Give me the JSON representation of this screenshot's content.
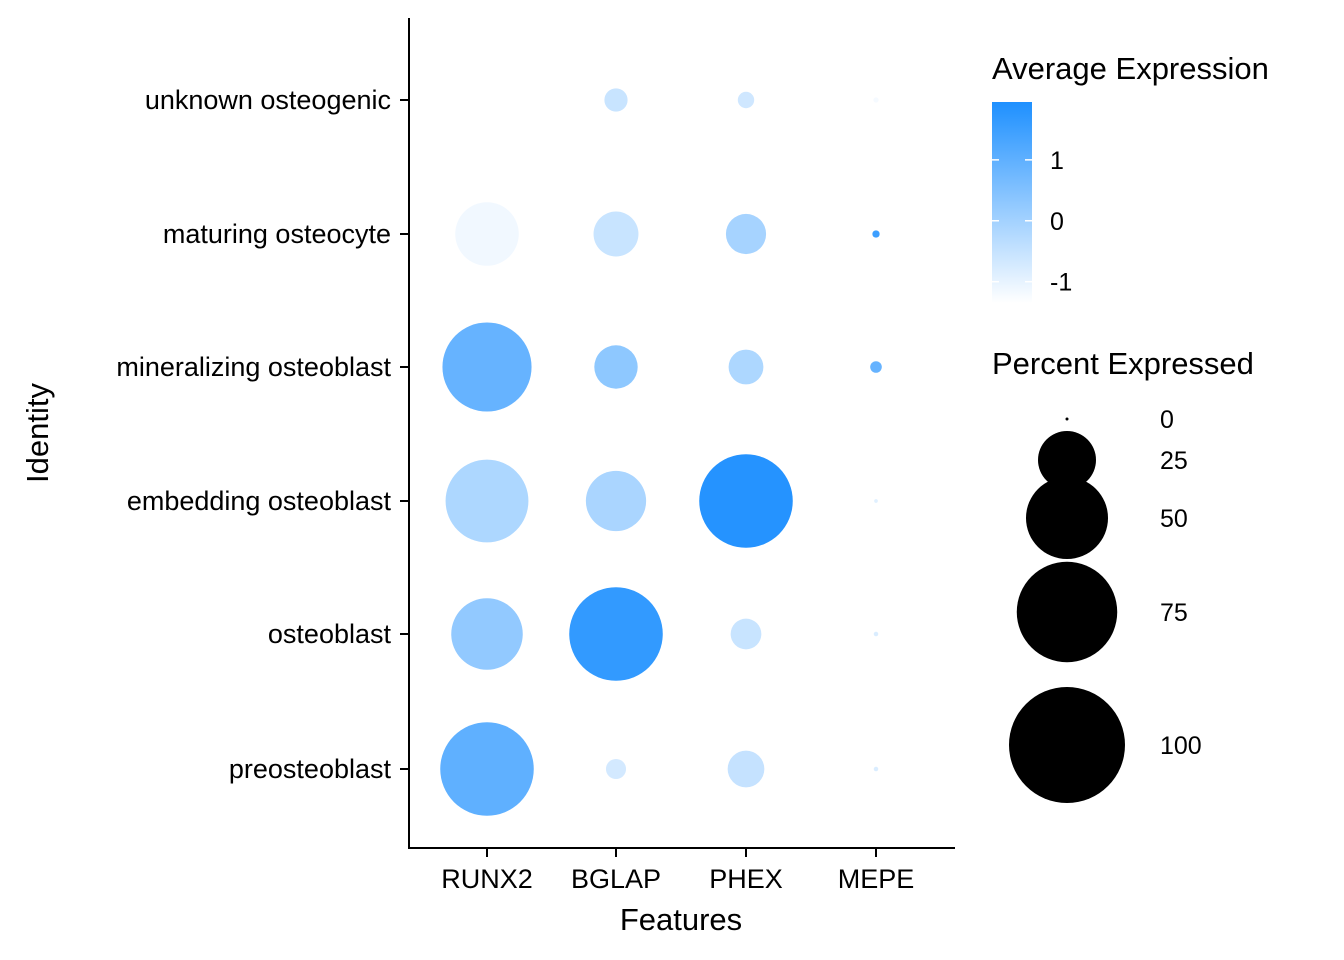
{
  "chart_data": {
    "type": "dot",
    "xlabel": "Features",
    "ylabel": "Identity",
    "features": [
      "RUNX2",
      "BGLAP",
      "PHEX",
      "MEPE"
    ],
    "identities": [
      "unknown osteogenic",
      "maturing osteocyte",
      "mineralizing osteoblast",
      "embedding osteoblast",
      "osteoblast",
      "preosteoblast"
    ],
    "points": [
      {
        "identity": "unknown osteogenic",
        "feature": "RUNX2",
        "pct": 18,
        "avg": -1.35
      },
      {
        "identity": "unknown osteogenic",
        "feature": "BGLAP",
        "pct": 4,
        "avg": -0.55
      },
      {
        "identity": "unknown osteogenic",
        "feature": "PHEX",
        "pct": 2,
        "avg": -0.65
      },
      {
        "identity": "unknown osteogenic",
        "feature": "MEPE",
        "pct": 0.2,
        "avg": -1.2
      },
      {
        "identity": "maturing osteocyte",
        "feature": "RUNX2",
        "pct": 30,
        "avg": -1.15
      },
      {
        "identity": "maturing osteocyte",
        "feature": "BGLAP",
        "pct": 15,
        "avg": -0.55
      },
      {
        "identity": "maturing osteocyte",
        "feature": "PHEX",
        "pct": 12,
        "avg": -0.05
      },
      {
        "identity": "maturing osteocyte",
        "feature": "MEPE",
        "pct": 0.4,
        "avg": 1.5
      },
      {
        "identity": "mineralizing osteoblast",
        "feature": "RUNX2",
        "pct": 59,
        "avg": 0.9
      },
      {
        "identity": "mineralizing osteoblast",
        "feature": "BGLAP",
        "pct": 14,
        "avg": 0.3
      },
      {
        "identity": "mineralizing osteoblast",
        "feature": "PHEX",
        "pct": 9,
        "avg": -0.15
      },
      {
        "identity": "mineralizing osteoblast",
        "feature": "MEPE",
        "pct": 1,
        "avg": 0.9
      },
      {
        "identity": "embedding osteoblast",
        "feature": "RUNX2",
        "pct": 51,
        "avg": -0.15
      },
      {
        "identity": "embedding osteoblast",
        "feature": "BGLAP",
        "pct": 27,
        "avg": -0.1
      },
      {
        "identity": "embedding osteoblast",
        "feature": "PHEX",
        "pct": 65,
        "avg": 1.85
      },
      {
        "identity": "embedding osteoblast",
        "feature": "MEPE",
        "pct": 0.1,
        "avg": -0.9
      },
      {
        "identity": "osteoblast",
        "feature": "RUNX2",
        "pct": 38,
        "avg": 0.25
      },
      {
        "identity": "osteoblast",
        "feature": "BGLAP",
        "pct": 65,
        "avg": 1.65
      },
      {
        "identity": "osteoblast",
        "feature": "PHEX",
        "pct": 7,
        "avg": -0.55
      },
      {
        "identity": "osteoblast",
        "feature": "MEPE",
        "pct": 0.15,
        "avg": -0.8
      },
      {
        "identity": "preosteoblast",
        "feature": "RUNX2",
        "pct": 65,
        "avg": 1.0
      },
      {
        "identity": "preosteoblast",
        "feature": "BGLAP",
        "pct": 3,
        "avg": -0.7
      },
      {
        "identity": "preosteoblast",
        "feature": "PHEX",
        "pct": 10,
        "avg": -0.5
      },
      {
        "identity": "preosteoblast",
        "feature": "MEPE",
        "pct": 0.15,
        "avg": -0.8
      }
    ],
    "color_legend": {
      "title": "Average Expression",
      "min_color": "#ffffff",
      "max_color": "#1e90ff",
      "range": [
        -1.35,
        1.95
      ],
      "ticks": [
        {
          "value": 1,
          "label": "1"
        },
        {
          "value": 0,
          "label": "0"
        },
        {
          "value": -1,
          "label": "-1"
        }
      ]
    },
    "size_legend": {
      "title": "Percent Expressed",
      "range": [
        0,
        100
      ],
      "ticks": [
        {
          "value": 0,
          "label": "0"
        },
        {
          "value": 25,
          "label": "25"
        },
        {
          "value": 50,
          "label": "50"
        },
        {
          "value": 75,
          "label": "75"
        },
        {
          "value": 100,
          "label": "100"
        }
      ]
    },
    "grid": false,
    "legend_position": "right"
  }
}
